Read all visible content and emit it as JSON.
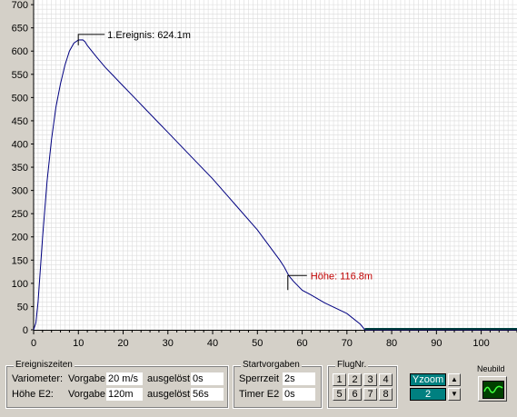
{
  "colors": {
    "plot_background": "#ffffff",
    "grid": "#dcdcdc",
    "curve": "#000080",
    "annotation_1": "#000000",
    "annotation_2": "#c00000",
    "ground_line": "#004040",
    "accent": "#008080"
  },
  "chart_data": {
    "type": "line",
    "title": "",
    "xlabel": "",
    "ylabel": "",
    "xlim": [
      0,
      108
    ],
    "ylim": [
      0,
      710
    ],
    "x_ticks": [
      0,
      10,
      20,
      30,
      40,
      50,
      60,
      70,
      80,
      90,
      100
    ],
    "y_ticks": [
      0,
      50,
      100,
      150,
      200,
      250,
      300,
      350,
      400,
      450,
      500,
      550,
      600,
      650,
      700
    ],
    "grid": true,
    "series": [
      {
        "name": "",
        "x": [
          0,
          0.5,
          1,
          2,
          3,
          4,
          5,
          6,
          7,
          8,
          9,
          10,
          11,
          11.5,
          12,
          13,
          14,
          16,
          18,
          20,
          22,
          25,
          28,
          30,
          35,
          40,
          45,
          50,
          55,
          56,
          57,
          58,
          60,
          62,
          65,
          70,
          73,
          74,
          80,
          90,
          100,
          108
        ],
        "y": [
          0,
          15,
          60,
          200,
          320,
          410,
          480,
          530,
          570,
          600,
          617,
          624,
          624.1,
          620,
          612,
          600,
          588,
          565,
          545,
          525,
          505,
          475,
          445,
          425,
          375,
          325,
          270,
          215,
          150,
          135,
          116.8,
          105,
          85,
          75,
          58,
          35,
          12,
          0,
          0,
          0,
          0,
          0
        ]
      }
    ],
    "annotations": [
      {
        "label": "1.Ereignis: 624.1m",
        "x": 11,
        "y": 624.1
      },
      {
        "label": "Höhe: 116.8m",
        "x": 57,
        "y": 116.8
      }
    ]
  },
  "ereigniszeiten": {
    "title": "Ereigniszeiten",
    "row1": {
      "label": "Variometer:",
      "vorgabe_label": "Vorgabe",
      "vorgabe_value": "20 m/s",
      "ausgeloest_label": "ausgelöst",
      "ausgeloest_value": "0s"
    },
    "row2": {
      "label": "Höhe E2:",
      "vorgabe_label": "Vorgabe",
      "vorgabe_value": "120m",
      "ausgeloest_label": "ausgelöst",
      "ausgeloest_value": "56s"
    }
  },
  "startvorgaben": {
    "title": "Startvorgaben",
    "sperrzeit_label": "Sperrzeit",
    "sperrzeit_value": "2s",
    "timer_label": "Timer E2",
    "timer_value": "0s"
  },
  "flugnr": {
    "title": "FlugNr.",
    "buttons": [
      "1",
      "2",
      "3",
      "4",
      "5",
      "6",
      "7",
      "8"
    ]
  },
  "yzoom": {
    "label": "Yzoom",
    "value": "2",
    "up_icon": "▲",
    "down_icon": "▼"
  },
  "neubild": {
    "label": "Neubild",
    "icon": "oscilloscope-icon"
  }
}
